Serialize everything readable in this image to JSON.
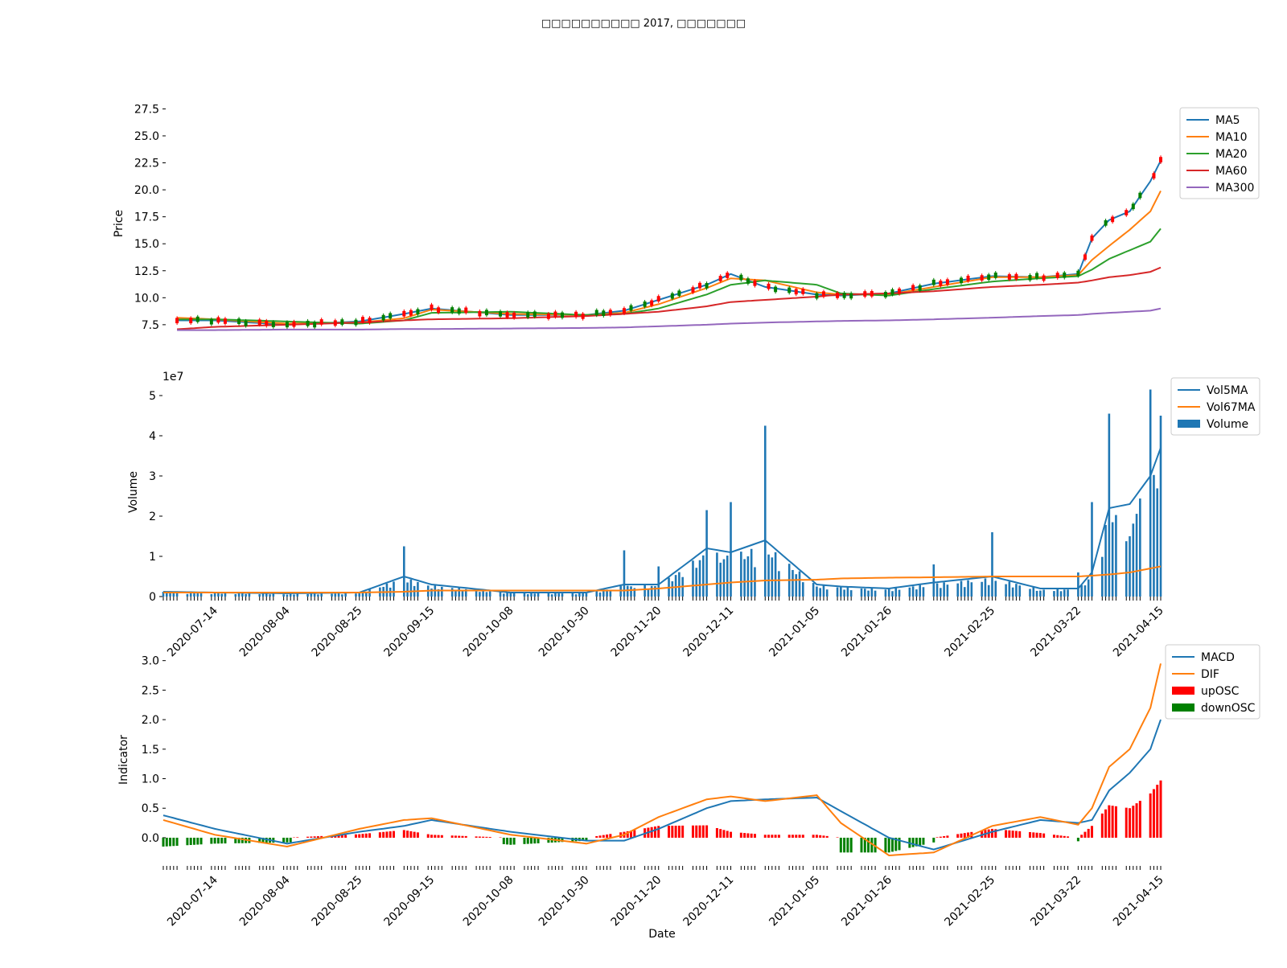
{
  "title": "□□□□□□□□□□ 2017, □□□□□□□",
  "colors": {
    "ma5": "#1f77b4",
    "ma10": "#ff7f0e",
    "ma20": "#2ca02c",
    "ma60": "#d62728",
    "ma300": "#9467bd",
    "up": "#ff0000",
    "down": "#008000",
    "volume": "#1f77b4"
  },
  "date_ticks": [
    "2020-07-14",
    "2020-08-04",
    "2020-08-25",
    "2020-09-15",
    "2020-10-08",
    "2020-10-30",
    "2020-11-20",
    "2020-12-11",
    "2021-01-05",
    "2021-01-26",
    "2021-02-25",
    "2021-03-22",
    "2021-04-15"
  ],
  "chart_data": [
    {
      "type": "line",
      "panel": "price",
      "ylabel": "Price",
      "yticks": [
        "7.5",
        "10.0",
        "12.5",
        "15.0",
        "17.5",
        "20.0",
        "22.5",
        "25.0",
        "27.5"
      ],
      "ylim": [
        6.0,
        28.5
      ],
      "legend": [
        "MA5",
        "MA10",
        "MA20",
        "MA60",
        "MA300"
      ],
      "legend_position": "top-right",
      "x": [
        "2020-06-29",
        "2020-07-14",
        "2020-08-04",
        "2020-08-25",
        "2020-09-07",
        "2020-09-15",
        "2020-10-08",
        "2020-10-30",
        "2020-11-10",
        "2020-11-20",
        "2020-12-04",
        "2020-12-11",
        "2020-12-21",
        "2021-01-05",
        "2021-01-12",
        "2021-01-26",
        "2021-02-08",
        "2021-02-25",
        "2021-03-11",
        "2021-03-22",
        "2021-03-26",
        "2021-03-31",
        "2021-04-06",
        "2021-04-12",
        "2021-04-15"
      ],
      "series": [
        {
          "name": "MA5",
          "values": [
            7.9,
            7.9,
            7.5,
            7.8,
            8.5,
            9.0,
            8.4,
            8.4,
            8.8,
            9.8,
            11.2,
            12.2,
            11.0,
            10.3,
            10.2,
            10.4,
            11.3,
            12.0,
            11.9,
            12.2,
            15.5,
            17.2,
            18.0,
            20.8,
            22.7
          ]
        },
        {
          "name": "MA10",
          "values": [
            8.2,
            8.0,
            7.6,
            7.7,
            8.1,
            8.9,
            8.5,
            8.4,
            8.6,
            9.4,
            10.9,
            11.8,
            11.6,
            10.5,
            10.3,
            10.3,
            11.0,
            11.9,
            11.9,
            12.1,
            13.5,
            14.8,
            16.3,
            18.0,
            19.9
          ]
        },
        {
          "name": "MA20",
          "values": [
            8.0,
            8.0,
            7.8,
            7.6,
            7.9,
            8.6,
            8.7,
            8.4,
            8.5,
            9.0,
            10.3,
            11.2,
            11.6,
            11.2,
            10.4,
            10.2,
            10.8,
            11.5,
            11.8,
            12.0,
            12.6,
            13.6,
            14.4,
            15.2,
            16.4
          ]
        },
        {
          "name": "MA60",
          "values": [
            7.0,
            7.3,
            7.5,
            7.7,
            7.9,
            8.0,
            8.1,
            8.3,
            8.5,
            8.7,
            9.2,
            9.6,
            9.8,
            10.1,
            10.3,
            10.4,
            10.6,
            11.0,
            11.2,
            11.4,
            11.6,
            11.9,
            12.1,
            12.4,
            12.8
          ]
        },
        {
          "name": "MA300",
          "values": [
            7.0,
            7.0,
            7.05,
            7.05,
            7.1,
            7.1,
            7.15,
            7.2,
            7.25,
            7.35,
            7.5,
            7.6,
            7.7,
            7.8,
            7.85,
            7.9,
            8.0,
            8.15,
            8.3,
            8.4,
            8.5,
            8.6,
            8.7,
            8.8,
            9.0
          ]
        }
      ]
    },
    {
      "type": "bar",
      "panel": "volume",
      "ylabel": "Volume",
      "offset_label": "1e7",
      "yticks": [
        "0",
        "1",
        "2",
        "3",
        "4",
        "5"
      ],
      "ylim": [
        0,
        5.6
      ],
      "legend": [
        "Vol5MA",
        "Vol67MA",
        "Volume"
      ],
      "legend_position": "top-right",
      "x": [
        "2020-06-29",
        "2020-07-14",
        "2020-08-04",
        "2020-08-25",
        "2020-09-07",
        "2020-09-15",
        "2020-10-08",
        "2020-10-30",
        "2020-11-10",
        "2020-11-20",
        "2020-12-04",
        "2020-12-11",
        "2020-12-21",
        "2021-01-05",
        "2021-01-12",
        "2021-01-26",
        "2021-02-08",
        "2021-02-25",
        "2021-03-11",
        "2021-03-22",
        "2021-03-26",
        "2021-03-31",
        "2021-04-06",
        "2021-04-12",
        "2021-04-15"
      ],
      "series": [
        {
          "name": "Volume",
          "values": [
            0.12,
            0.1,
            0.05,
            0.08,
            1.25,
            0.2,
            0.1,
            0.08,
            1.15,
            0.75,
            2.15,
            2.35,
            4.25,
            0.25,
            0.25,
            0.2,
            0.8,
            1.6,
            0.15,
            0.6,
            2.35,
            4.55,
            1.5,
            5.15,
            4.5
          ]
        },
        {
          "name": "Vol5MA",
          "values": [
            0.12,
            0.1,
            0.08,
            0.1,
            0.5,
            0.3,
            0.1,
            0.1,
            0.3,
            0.3,
            1.2,
            1.1,
            1.4,
            0.3,
            0.25,
            0.2,
            0.35,
            0.5,
            0.2,
            0.2,
            0.6,
            2.2,
            2.3,
            3.0,
            3.7
          ]
        },
        {
          "name": "Vol67MA",
          "values": [
            0.1,
            0.1,
            0.1,
            0.1,
            0.12,
            0.15,
            0.15,
            0.15,
            0.15,
            0.2,
            0.3,
            0.35,
            0.4,
            0.42,
            0.45,
            0.47,
            0.48,
            0.5,
            0.5,
            0.5,
            0.52,
            0.55,
            0.6,
            0.7,
            0.75
          ]
        }
      ]
    },
    {
      "type": "line",
      "panel": "indicator",
      "ylabel": "Indicator",
      "xlabel": "Date",
      "yticks": [
        "0.0",
        "0.5",
        "1.0",
        "1.5",
        "2.0",
        "2.5",
        "3.0"
      ],
      "ylim": [
        -0.45,
        3.05
      ],
      "legend": [
        "MACD",
        "DIF",
        "upOSC",
        "downOSC"
      ],
      "legend_position": "top-right",
      "x": [
        "2020-06-29",
        "2020-07-14",
        "2020-08-04",
        "2020-08-25",
        "2020-09-07",
        "2020-09-15",
        "2020-10-08",
        "2020-10-30",
        "2020-11-10",
        "2020-11-20",
        "2020-12-04",
        "2020-12-11",
        "2020-12-21",
        "2021-01-05",
        "2021-01-12",
        "2021-01-26",
        "2021-02-08",
        "2021-02-25",
        "2021-03-11",
        "2021-03-22",
        "2021-03-26",
        "2021-03-31",
        "2021-04-06",
        "2021-04-12",
        "2021-04-15"
      ],
      "series": [
        {
          "name": "MACD",
          "values": [
            0.38,
            0.15,
            -0.1,
            0.1,
            0.2,
            0.3,
            0.1,
            -0.05,
            -0.05,
            0.15,
            0.5,
            0.62,
            0.65,
            0.68,
            0.45,
            0.0,
            -0.2,
            0.1,
            0.3,
            0.25,
            0.3,
            0.8,
            1.1,
            1.5,
            2.0
          ]
        },
        {
          "name": "DIF",
          "values": [
            0.3,
            0.05,
            -0.15,
            0.15,
            0.3,
            0.33,
            0.05,
            -0.1,
            0.05,
            0.35,
            0.65,
            0.7,
            0.62,
            0.72,
            0.25,
            -0.3,
            -0.25,
            0.2,
            0.35,
            0.22,
            0.5,
            1.2,
            1.5,
            2.2,
            2.95
          ]
        },
        {
          "name": "upOSC",
          "values": [
            0,
            0,
            0,
            0.06,
            0.13,
            0.05,
            0,
            0,
            0.1,
            0.2,
            0.21,
            0.1,
            0.05,
            0.05,
            0,
            0,
            0,
            0.15,
            0.08,
            0,
            0.2,
            0.55,
            0.5,
            0.75,
            0.97
          ]
        },
        {
          "name": "downOSC",
          "values": [
            -0.15,
            -0.1,
            -0.08,
            0,
            0,
            0,
            -0.12,
            -0.05,
            0,
            0,
            0,
            0,
            -0.05,
            0,
            -0.25,
            -0.25,
            -0.08,
            0,
            0,
            -0.06,
            0,
            0,
            0,
            0,
            0
          ]
        }
      ]
    }
  ]
}
